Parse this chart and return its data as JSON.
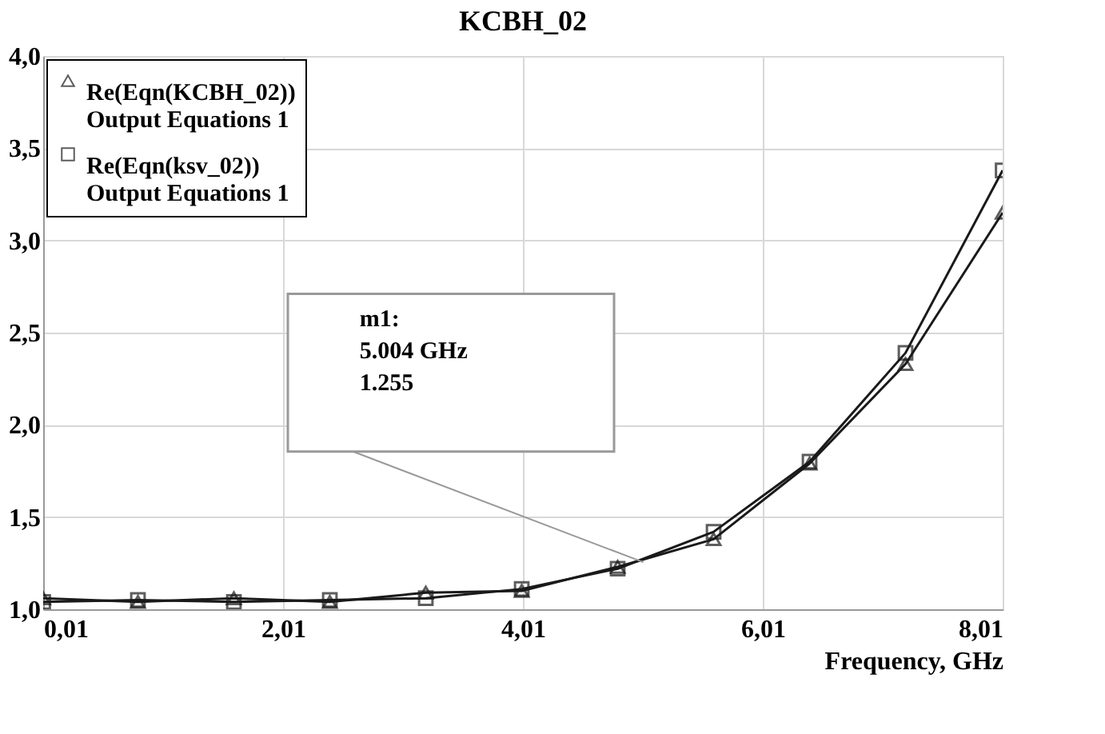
{
  "chart_data": {
    "type": "line",
    "title": "KCBH_02",
    "xlabel": "Frequency, GHz",
    "x": [
      0.01,
      0.8,
      1.6,
      2.4,
      3.2,
      4.0,
      4.8,
      5.6,
      6.4,
      7.2,
      8.01
    ],
    "series": [
      {
        "name": "Re(Eqn(KCBH_02))\nOutput Equations 1",
        "color": "#1a1a1a",
        "marker": "triangle",
        "values": [
          1.06,
          1.04,
          1.06,
          1.04,
          1.09,
          1.1,
          1.23,
          1.38,
          1.79,
          2.33,
          3.15
        ]
      },
      {
        "name": "Re(Eqn(ksv_02))\nOutput Equations 1",
        "color": "#1a1a1a",
        "marker": "square",
        "values": [
          1.04,
          1.05,
          1.04,
          1.05,
          1.06,
          1.11,
          1.22,
          1.42,
          1.8,
          2.39,
          3.38
        ]
      }
    ],
    "xlim": [
      0.01,
      8.01
    ],
    "xticks": [
      {
        "value": 0.01,
        "label": "0,01"
      },
      {
        "value": 2.01,
        "label": "2,01"
      },
      {
        "value": 4.01,
        "label": "4,01"
      },
      {
        "value": 6.01,
        "label": "6,01"
      },
      {
        "value": 8.01,
        "label": "8,01"
      }
    ],
    "ylim": [
      1.0,
      4.0
    ],
    "yticks": [
      {
        "value": 1.0,
        "label": "1,0"
      },
      {
        "value": 1.5,
        "label": "1,5"
      },
      {
        "value": 2.0,
        "label": "2,0"
      },
      {
        "value": 2.5,
        "label": "2,5"
      },
      {
        "value": 3.0,
        "label": "3,0"
      },
      {
        "value": 3.5,
        "label": "3,5"
      },
      {
        "value": 4.0,
        "label": "4,0"
      }
    ],
    "grid": true,
    "legend": "top left",
    "line_style": "solid",
    "annotations": [
      "m1:\n5.004 GHz\n1.255"
    ]
  }
}
